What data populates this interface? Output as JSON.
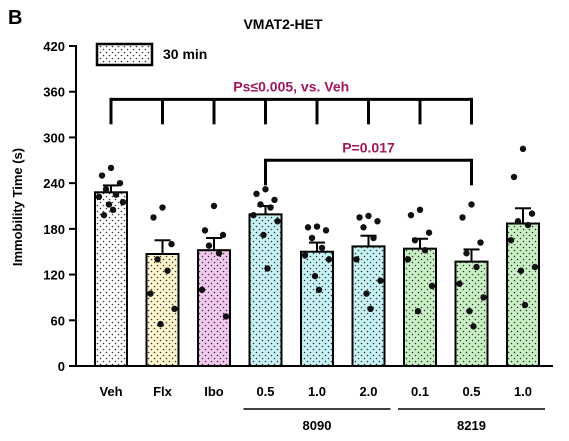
{
  "panel_label": "B",
  "colors": {
    "axis": "#000000",
    "annotation": "#a0185a",
    "dot": "#111111"
  },
  "chart_data": {
    "type": "bar",
    "title": "VMAT2-HET",
    "ylabel": "Immobility Time (s)",
    "xlabel": "",
    "ylim": [
      0,
      420
    ],
    "yticks": [
      0,
      60,
      120,
      180,
      240,
      300,
      360,
      420
    ],
    "grid": false,
    "legend": {
      "position": "top-left",
      "entries": [
        {
          "label": "30 min",
          "pattern": "dots-white"
        }
      ]
    },
    "categories": [
      "Veh",
      "Flx",
      "Ibo",
      "0.5",
      "1.0",
      "2.0",
      "0.1",
      "0.5",
      "1.0"
    ],
    "fills": [
      "#ffffff",
      "#fff5cc",
      "#f2c8ef",
      "#c6f2f5",
      "#c6f2f5",
      "#c6f2f5",
      "#c9efc4",
      "#c9efc4",
      "#c9efc4"
    ],
    "values": [
      228,
      147,
      152,
      199,
      150,
      157,
      154,
      137,
      187
    ],
    "sem": [
      9,
      18,
      16,
      11,
      12,
      14,
      13,
      16,
      20
    ],
    "points": [
      [
        260,
        250,
        240,
        232,
        225,
        222,
        215,
        212,
        205,
        198
      ],
      [
        208,
        195,
        160,
        140,
        125,
        95,
        75,
        55
      ],
      [
        210,
        178,
        172,
        158,
        148,
        100,
        65
      ],
      [
        232,
        226,
        218,
        212,
        208,
        198,
        190,
        172,
        128
      ],
      [
        183,
        182,
        178,
        168,
        155,
        145,
        140,
        118,
        100
      ],
      [
        197,
        195,
        190,
        182,
        168,
        140,
        112,
        95,
        75
      ],
      [
        205,
        198,
        175,
        165,
        152,
        140,
        105,
        72
      ],
      [
        212,
        195,
        162,
        148,
        130,
        108,
        90,
        72,
        52
      ],
      [
        285,
        248,
        200,
        190,
        185,
        165,
        130,
        125,
        80
      ]
    ],
    "groups": [
      {
        "label": "8090",
        "from": 3,
        "to": 5
      },
      {
        "label": "8219",
        "from": 6,
        "to": 8
      }
    ],
    "annotations": [
      {
        "text": "Ps≤0.005, vs. Veh",
        "from": 0,
        "to": 7,
        "y": 350,
        "ticks": [
          1,
          2,
          3,
          4,
          5,
          6,
          7
        ]
      },
      {
        "text": "P=0.017",
        "from": 3,
        "to": 7,
        "y": 270,
        "ticks": []
      }
    ]
  }
}
